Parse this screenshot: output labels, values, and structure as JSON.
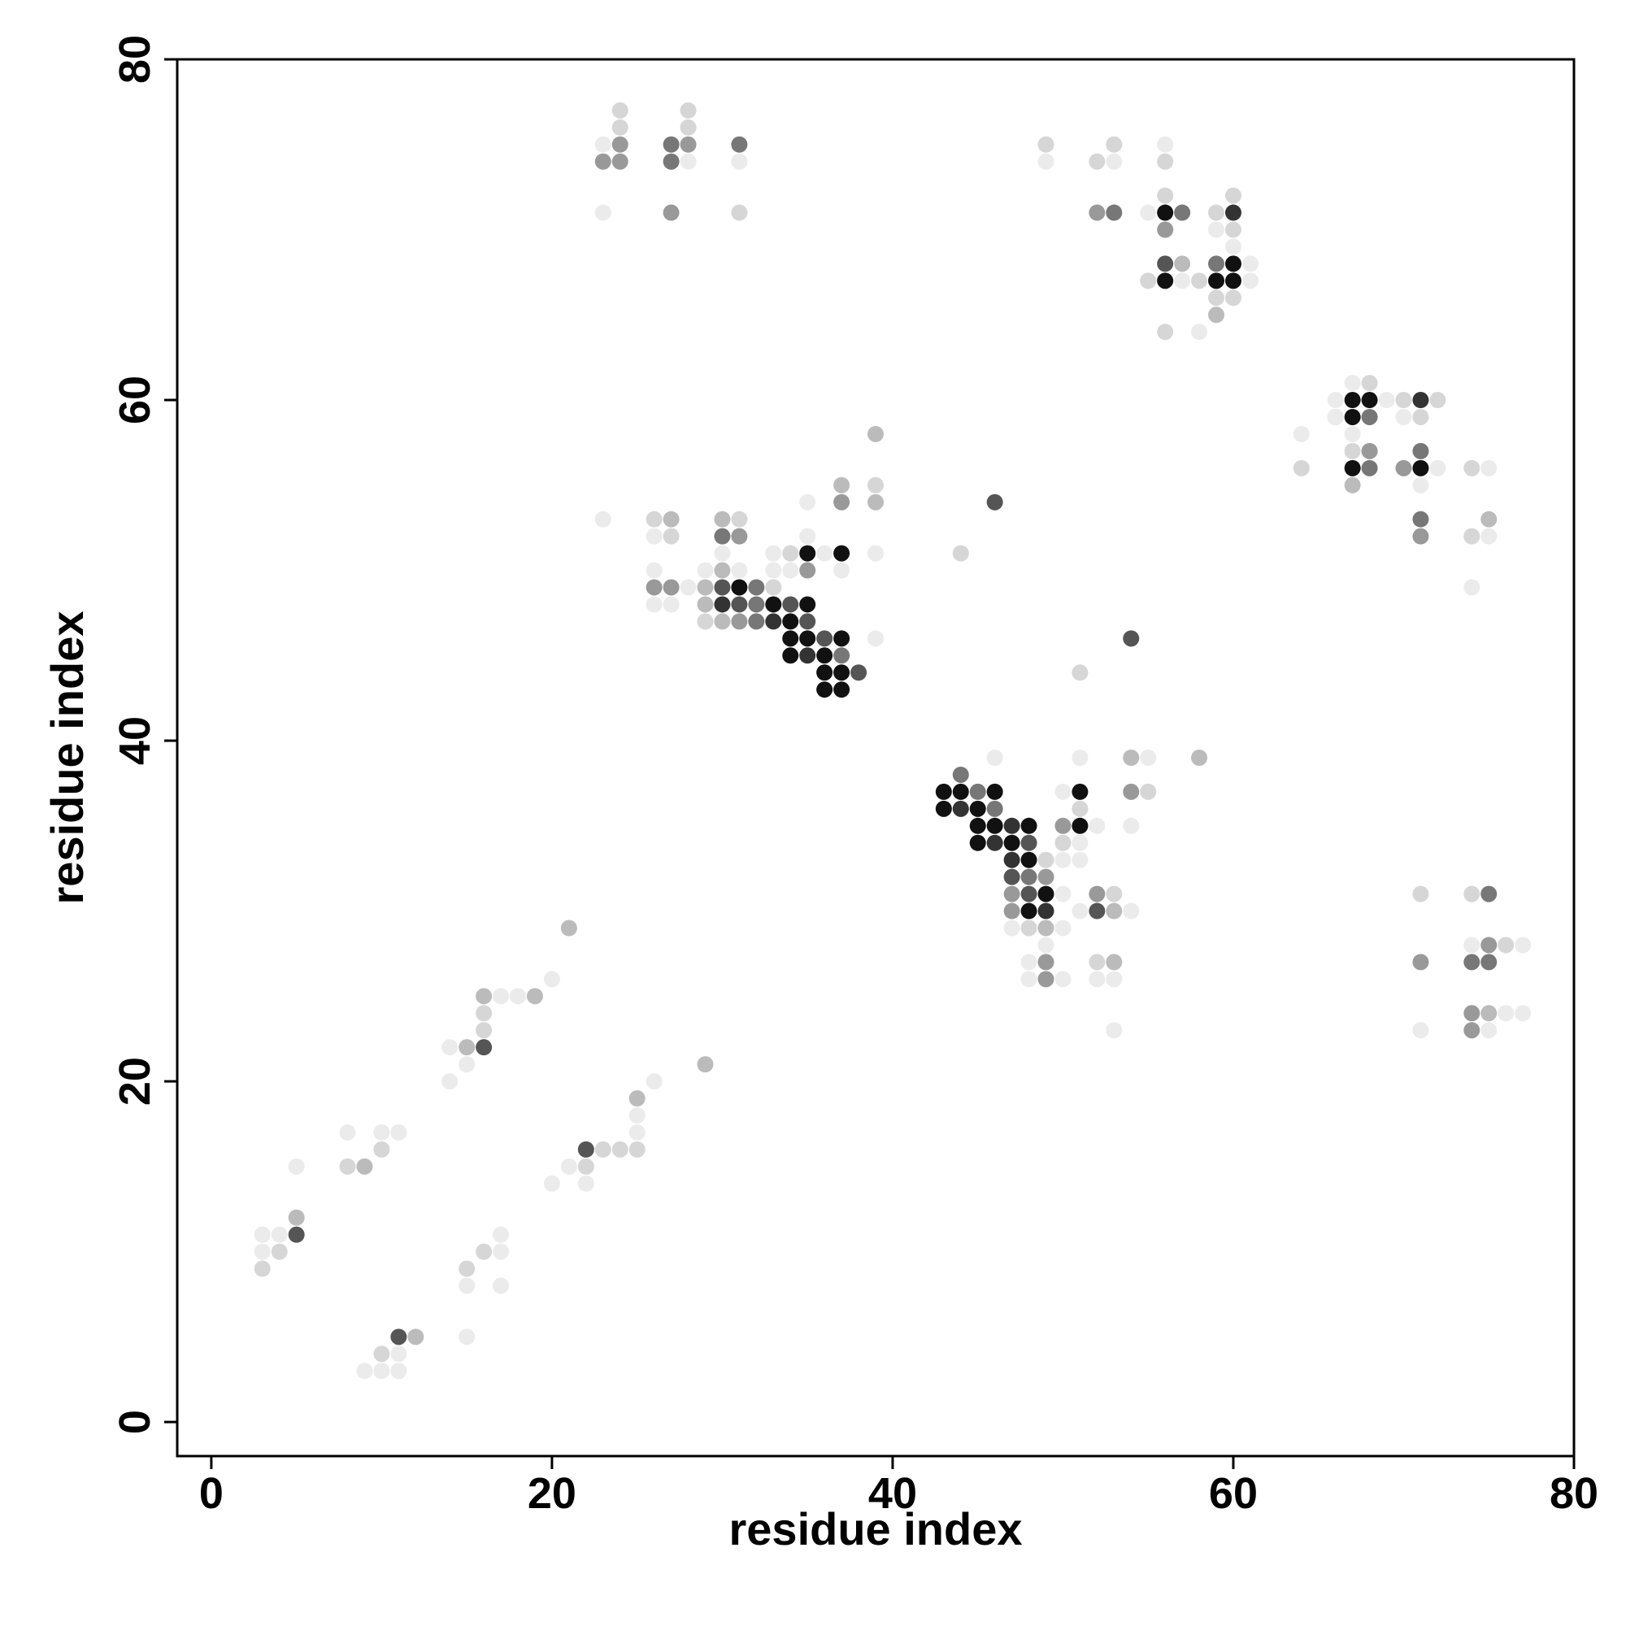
{
  "chart_data": {
    "type": "scatter",
    "xlabel": "residue index",
    "ylabel": "residue index",
    "xlim": [
      -2,
      80
    ],
    "ylim": [
      -2,
      80
    ],
    "xticks": [
      0,
      20,
      40,
      60,
      80
    ],
    "yticks": [
      0,
      20,
      40,
      60,
      80
    ],
    "grid": false,
    "series": [
      {
        "color": "#111111",
        "x": [
          56,
          60,
          56,
          59,
          60,
          67,
          68,
          67,
          67,
          71,
          35,
          37,
          31,
          33,
          35,
          34,
          34,
          35,
          37,
          34,
          36,
          36,
          37,
          36,
          37,
          43,
          44,
          46,
          51,
          43,
          45,
          45,
          46,
          48,
          51,
          45,
          47,
          48,
          49,
          48
        ],
        "values": [
          71,
          68,
          67,
          67,
          67,
          60,
          60,
          59,
          56,
          56,
          51,
          51,
          49,
          48,
          48,
          47,
          46,
          46,
          46,
          45,
          45,
          44,
          44,
          43,
          43,
          37,
          37,
          37,
          37,
          36,
          36,
          35,
          35,
          35,
          35,
          34,
          34,
          33,
          31,
          30
        ]
      },
      {
        "color": "#333333",
        "x": [
          60,
          71,
          30,
          33,
          35,
          44,
          47,
          46,
          47,
          49
        ],
        "values": [
          71,
          60,
          48,
          47,
          45,
          36,
          35,
          34,
          33,
          30
        ]
      },
      {
        "color": "#555555",
        "x": [
          46,
          30,
          31,
          34,
          35,
          36,
          54,
          38,
          56,
          48,
          47,
          48,
          52,
          22,
          5,
          11,
          16
        ],
        "values": [
          54,
          49,
          48,
          48,
          47,
          46,
          46,
          44,
          68,
          34,
          32,
          31,
          30,
          16,
          11,
          5,
          22
        ]
      },
      {
        "color": "#777777",
        "x": [
          27,
          31,
          27,
          53,
          57,
          59,
          68,
          71,
          68,
          71,
          30,
          32,
          32,
          32,
          37,
          44,
          45,
          46,
          48,
          75,
          74,
          75
        ],
        "values": [
          75,
          75,
          74,
          71,
          71,
          68,
          59,
          57,
          56,
          53,
          52,
          49,
          48,
          47,
          45,
          38,
          37,
          36,
          32,
          31,
          27,
          27
        ]
      },
      {
        "color": "#999999",
        "x": [
          24,
          28,
          23,
          24,
          27,
          52,
          56,
          68,
          70,
          71,
          31,
          37,
          35,
          26,
          27,
          31,
          49,
          47,
          52,
          47,
          54,
          50,
          49,
          49,
          75,
          71,
          74,
          74
        ],
        "values": [
          75,
          75,
          74,
          74,
          71,
          71,
          70,
          57,
          56,
          52,
          52,
          54,
          50,
          49,
          49,
          47,
          32,
          31,
          31,
          30,
          37,
          35,
          27,
          26,
          28,
          27,
          24,
          23
        ]
      },
      {
        "color": "#bbbbbb",
        "x": [
          59,
          66,
          39,
          37,
          67,
          39,
          27,
          30,
          75,
          30,
          29,
          29,
          30,
          54,
          58,
          49,
          53,
          53,
          21,
          16,
          19,
          75,
          15,
          29,
          25,
          9,
          5,
          12,
          57
        ],
        "values": [
          65,
          59,
          58,
          55,
          55,
          54,
          53,
          53,
          53,
          50,
          49,
          48,
          47,
          39,
          39,
          29,
          30,
          27,
          29,
          25,
          25,
          24,
          22,
          21,
          19,
          15,
          12,
          5,
          68
        ]
      },
      {
        "color": "#d6d6d6",
        "x": [
          24,
          28,
          24,
          28,
          49,
          53,
          52,
          56,
          56,
          60,
          31,
          59,
          60,
          55,
          58,
          59,
          60,
          56,
          68,
          70,
          72,
          71,
          67,
          64,
          74,
          27,
          31,
          26,
          74,
          34,
          44,
          33,
          29,
          51,
          39,
          55,
          51,
          50,
          49,
          53,
          71,
          74,
          48,
          52,
          76,
          16,
          16,
          22,
          23,
          24,
          25,
          10,
          8,
          4,
          3,
          15,
          16,
          10
        ],
        "values": [
          77,
          77,
          76,
          76,
          75,
          75,
          74,
          74,
          72,
          72,
          71,
          71,
          70,
          67,
          67,
          66,
          66,
          64,
          61,
          60,
          60,
          59,
          57,
          56,
          56,
          52,
          53,
          53,
          52,
          51,
          51,
          49,
          47,
          44,
          55,
          37,
          36,
          34,
          33,
          31,
          31,
          31,
          29,
          27,
          28,
          24,
          23,
          15,
          16,
          16,
          16,
          16,
          15,
          10,
          9,
          9,
          10,
          4
        ]
      },
      {
        "color": "#ebebeb",
        "x": [
          23,
          56,
          49,
          53,
          28,
          31,
          23,
          55,
          59,
          60,
          61,
          57,
          61,
          58,
          67,
          66,
          69,
          66,
          70,
          64,
          67,
          72,
          75,
          71,
          35,
          23,
          26,
          75,
          35,
          30,
          33,
          36,
          39,
          26,
          29,
          31,
          33,
          34,
          37,
          28,
          74,
          26,
          27,
          39,
          46,
          51,
          55,
          50,
          52,
          54,
          51,
          50,
          51,
          50,
          51,
          54,
          47,
          50,
          49,
          74,
          77,
          48,
          48,
          50,
          52,
          53,
          76,
          77,
          53,
          71,
          75,
          17,
          18,
          20,
          14,
          15,
          14,
          26,
          25,
          25,
          8,
          10,
          11,
          5,
          21,
          20,
          22,
          3,
          4,
          17,
          3,
          17,
          15,
          17,
          15,
          11,
          9,
          10,
          11
        ],
        "values": [
          75,
          75,
          74,
          74,
          74,
          74,
          71,
          71,
          70,
          69,
          68,
          67,
          67,
          64,
          61,
          60,
          60,
          59,
          59,
          58,
          58,
          56,
          56,
          55,
          54,
          53,
          52,
          52,
          52,
          51,
          51,
          51,
          51,
          50,
          50,
          50,
          50,
          50,
          50,
          49,
          49,
          48,
          48,
          46,
          39,
          39,
          39,
          37,
          35,
          35,
          34,
          33,
          33,
          31,
          30,
          30,
          29,
          29,
          28,
          28,
          28,
          27,
          26,
          26,
          26,
          26,
          24,
          24,
          23,
          23,
          23,
          25,
          25,
          26,
          22,
          21,
          20,
          20,
          18,
          17,
          17,
          17,
          17,
          15,
          15,
          14,
          14,
          11,
          11,
          11,
          10,
          10,
          8,
          8,
          5,
          4,
          3,
          3,
          3
        ]
      }
    ]
  }
}
